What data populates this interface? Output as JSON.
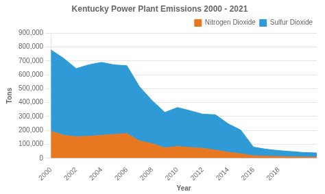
{
  "chart_data": {
    "type": "area",
    "title": "Kentucky Power Plant Emissions 2000 - 2021",
    "x_label": "Year",
    "y_label": "Tons",
    "x": [
      2000,
      2001,
      2002,
      2003,
      2004,
      2005,
      2006,
      2007,
      2008,
      2009,
      2010,
      2011,
      2012,
      2013,
      2014,
      2015,
      2016,
      2017,
      2018,
      2019,
      2020,
      2021
    ],
    "series": [
      {
        "name": "Nitrogen Dioxide",
        "color": "#e87722",
        "values": [
          195000,
          165000,
          155000,
          158000,
          165000,
          172000,
          178000,
          125000,
          105000,
          75000,
          85000,
          77000,
          72000,
          58000,
          43000,
          32000,
          18000,
          15000,
          13000,
          10000,
          9000,
          8000
        ]
      },
      {
        "name": "Sulfur Dioxide",
        "color": "#2e9bd6",
        "values": [
          585000,
          555000,
          490000,
          515000,
          525000,
          500000,
          488000,
          390000,
          310000,
          255000,
          280000,
          265000,
          245000,
          255000,
          205000,
          170000,
          62000,
          50000,
          42000,
          38000,
          32000,
          30000
        ]
      }
    ],
    "stacked": true,
    "xlim": [
      2000,
      2021
    ],
    "xticks": [
      2000,
      2002,
      2004,
      2006,
      2008,
      2010,
      2012,
      2014,
      2016,
      2018
    ],
    "ylim": [
      0,
      900000
    ],
    "yticks": [
      0,
      {
        "value": 100000,
        "label": "100,000"
      },
      {
        "value": 200000,
        "label": "200,000"
      },
      {
        "value": 300000,
        "label": "300,000"
      },
      {
        "value": 400000,
        "label": "400,000"
      },
      {
        "value": 500000,
        "label": "500,000"
      },
      {
        "value": 600000,
        "label": "600,000"
      },
      {
        "value": 700000,
        "label": "700,000"
      },
      {
        "value": 800000,
        "label": "800,000"
      },
      {
        "value": 900000,
        "label": "900,000"
      }
    ],
    "grid": "y",
    "legend": "upper right"
  }
}
